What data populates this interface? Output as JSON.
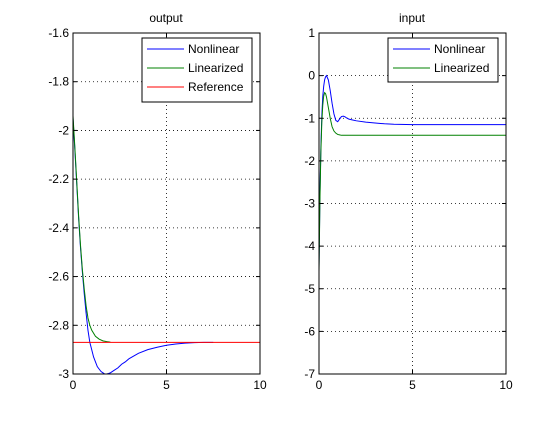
{
  "chart_data": [
    {
      "type": "line",
      "title": "output",
      "xlabel": "",
      "ylabel": "",
      "xlim": [
        0,
        10
      ],
      "ylim": [
        -3,
        -1.6
      ],
      "xticks": [
        0,
        5,
        10
      ],
      "yticks": [
        -3,
        -2.8,
        -2.6,
        -2.4,
        -2.2,
        -2,
        -1.8,
        -1.6
      ],
      "xtick_labels": [
        "0",
        "5",
        "10"
      ],
      "ytick_labels": [
        "-3",
        "-2.8",
        "-2.6",
        "-2.4",
        "-2.2",
        "-2",
        "-1.8",
        "-1.6"
      ],
      "grid": true,
      "legend_position": "top-right",
      "series": [
        {
          "name": "Nonlinear",
          "color": "#0000ff",
          "x": [
            0,
            0.1,
            0.2,
            0.3,
            0.4,
            0.5,
            0.6,
            0.7,
            0.8,
            0.9,
            1.0,
            1.1,
            1.2,
            1.3,
            1.4,
            1.5,
            1.6,
            1.7,
            1.8,
            1.9,
            2.0,
            2.1,
            2.2,
            2.4,
            2.6,
            2.8,
            3.0,
            3.5,
            4.0,
            4.5,
            5.0,
            5.5,
            6.0,
            6.5,
            7.0,
            7.5
          ],
          "y": [
            -1.95,
            -2.08,
            -2.22,
            -2.36,
            -2.48,
            -2.58,
            -2.67,
            -2.75,
            -2.82,
            -2.87,
            -2.9,
            -2.93,
            -2.95,
            -2.97,
            -2.98,
            -2.99,
            -2.995,
            -3.0,
            -3.0,
            -2.998,
            -2.995,
            -2.99,
            -2.985,
            -2.975,
            -2.96,
            -2.95,
            -2.937,
            -2.915,
            -2.9,
            -2.89,
            -2.882,
            -2.877,
            -2.873,
            -2.871,
            -2.87,
            -2.87
          ]
        },
        {
          "name": "Linearized",
          "color": "#008000",
          "x": [
            0,
            0.1,
            0.2,
            0.3,
            0.4,
            0.5,
            0.6,
            0.7,
            0.8,
            0.9,
            1.0,
            1.2,
            1.4,
            1.6,
            1.8,
            2.0
          ],
          "y": [
            -1.94,
            -2.07,
            -2.21,
            -2.35,
            -2.47,
            -2.57,
            -2.65,
            -2.72,
            -2.77,
            -2.8,
            -2.82,
            -2.845,
            -2.857,
            -2.864,
            -2.867,
            -2.869
          ]
        },
        {
          "name": "Reference",
          "color": "#ff0000",
          "x": [
            0,
            10
          ],
          "y": [
            -2.87,
            -2.87
          ]
        }
      ]
    },
    {
      "type": "line",
      "title": "input",
      "xlabel": "",
      "ylabel": "",
      "xlim": [
        0,
        10
      ],
      "ylim": [
        -7,
        1
      ],
      "xticks": [
        0,
        5,
        10
      ],
      "yticks": [
        -7,
        -6,
        -5,
        -4,
        -3,
        -2,
        -1,
        0,
        1
      ],
      "xtick_labels": [
        "0",
        "5",
        "10"
      ],
      "ytick_labels": [
        "-7",
        "-6",
        "-5",
        "-4",
        "-3",
        "-2",
        "-1",
        "0",
        "1"
      ],
      "grid": true,
      "legend_position": "top-right",
      "series": [
        {
          "name": "Nonlinear",
          "color": "#0000ff",
          "x": [
            0,
            0.05,
            0.1,
            0.15,
            0.2,
            0.25,
            0.3,
            0.35,
            0.4,
            0.5,
            0.6,
            0.7,
            0.8,
            0.9,
            1.0,
            1.1,
            1.2,
            1.3,
            1.4,
            1.5,
            1.6,
            1.8,
            2.0,
            2.5,
            3.0,
            3.5,
            4.0,
            5.0,
            6.0,
            7.0,
            8.0,
            9.0,
            10.0
          ],
          "y": [
            -4.5,
            -2.8,
            -1.7,
            -0.95,
            -0.5,
            -0.25,
            -0.1,
            -0.03,
            0.0,
            -0.1,
            -0.35,
            -0.65,
            -0.9,
            -1.05,
            -1.08,
            -1.02,
            -0.96,
            -0.95,
            -0.97,
            -1.0,
            -1.02,
            -1.04,
            -1.06,
            -1.09,
            -1.11,
            -1.13,
            -1.14,
            -1.15,
            -1.15,
            -1.15,
            -1.15,
            -1.15,
            -1.15
          ]
        },
        {
          "name": "Linearized",
          "color": "#008000",
          "x": [
            0,
            0.05,
            0.1,
            0.15,
            0.2,
            0.25,
            0.3,
            0.35,
            0.4,
            0.5,
            0.6,
            0.7,
            0.8,
            0.9,
            1.0,
            1.1,
            1.2,
            1.4,
            1.6,
            1.8,
            2.0,
            3.0,
            5.0,
            7.0,
            10.0
          ],
          "y": [
            -4.6,
            -2.9,
            -1.8,
            -1.1,
            -0.7,
            -0.48,
            -0.4,
            -0.42,
            -0.5,
            -0.75,
            -1.0,
            -1.2,
            -1.3,
            -1.35,
            -1.38,
            -1.39,
            -1.4,
            -1.4,
            -1.4,
            -1.4,
            -1.4,
            -1.4,
            -1.4,
            -1.4,
            -1.4
          ]
        }
      ]
    }
  ]
}
